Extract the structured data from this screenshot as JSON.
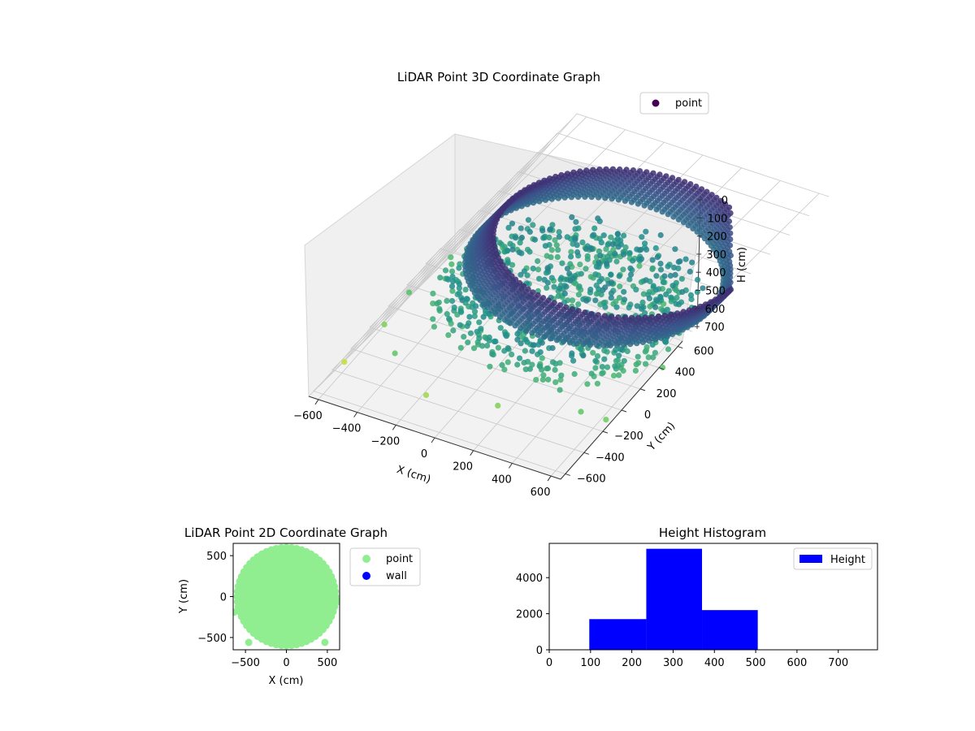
{
  "chart_data": [
    {
      "type": "scatter3d",
      "title": "LiDAR Point 3D Coordinate Graph",
      "xlabel": "X (cm)",
      "ylabel": "Y (cm)",
      "zlabel": "H (cm)",
      "xticks": [
        "−600",
        "−400",
        "−200",
        "0",
        "200",
        "400",
        "600"
      ],
      "yticks": [
        "−600",
        "−400",
        "−200",
        "0",
        "200",
        "400",
        "600"
      ],
      "zticks": [
        "0",
        "100",
        "200",
        "300",
        "400",
        "500",
        "600",
        "700"
      ],
      "xlim": [
        -650,
        650
      ],
      "ylim": [
        -650,
        650
      ],
      "zlim": [
        0,
        750
      ],
      "z_inverted": true,
      "colormap": "viridis",
      "legend": {
        "position": "top-right",
        "entries": [
          {
            "label": "point",
            "color": "#440154"
          }
        ]
      },
      "series": [
        {
          "name": "point",
          "description_points": [
            {
              "x": 0,
              "y": 0,
              "r": 600,
              "h_top": 100,
              "h_bottom": 250,
              "shape": "ring"
            },
            {
              "x": -480,
              "y": -560,
              "h": 520
            },
            {
              "x": 470,
              "y": -540,
              "h": 520
            },
            {
              "x": -640,
              "y": -120,
              "h": 500
            },
            {
              "x": 640,
              "y": -40,
              "h": 510
            }
          ]
        }
      ]
    },
    {
      "type": "scatter",
      "title": "LiDAR Point 2D Coordinate Graph",
      "xlabel": "X (cm)",
      "ylabel": "Y (cm)",
      "xticks": [
        "−500",
        "0",
        "500"
      ],
      "yticks": [
        "500",
        "0",
        "−500"
      ],
      "xlim": [
        -650,
        650
      ],
      "ylim": [
        -650,
        650
      ],
      "legend": {
        "position": "right",
        "entries": [
          {
            "label": "point",
            "color": "#90ee90"
          },
          {
            "label": "wall",
            "color": "#0000ff"
          }
        ]
      },
      "series": [
        {
          "name": "point",
          "color": "#90ee90",
          "shape": "disk",
          "center": [
            0,
            0
          ],
          "radius": 600,
          "outliers": [
            [
              -460,
              -560
            ],
            [
              470,
              -560
            ],
            [
              -640,
              -190
            ],
            [
              640,
              -60
            ]
          ]
        },
        {
          "name": "wall",
          "color": "#0000ff",
          "points": []
        }
      ]
    },
    {
      "type": "bar",
      "title": "Height Histogram",
      "xlabel": "",
      "ylabel": "",
      "xticks": [
        "0",
        "100",
        "200",
        "300",
        "400",
        "500",
        "600",
        "700"
      ],
      "yticks": [
        "0",
        "2000",
        "4000"
      ],
      "xlim": [
        0,
        795
      ],
      "ylim": [
        0,
        5900
      ],
      "color": "#0000ff",
      "legend": {
        "position": "top-right",
        "entries": [
          {
            "label": "Height",
            "color": "#0000ff"
          }
        ]
      },
      "bins": [
        {
          "start": 97,
          "end": 235,
          "count": 1700
        },
        {
          "start": 235,
          "end": 370,
          "count": 5600
        },
        {
          "start": 370,
          "end": 505,
          "count": 2200
        }
      ]
    }
  ]
}
